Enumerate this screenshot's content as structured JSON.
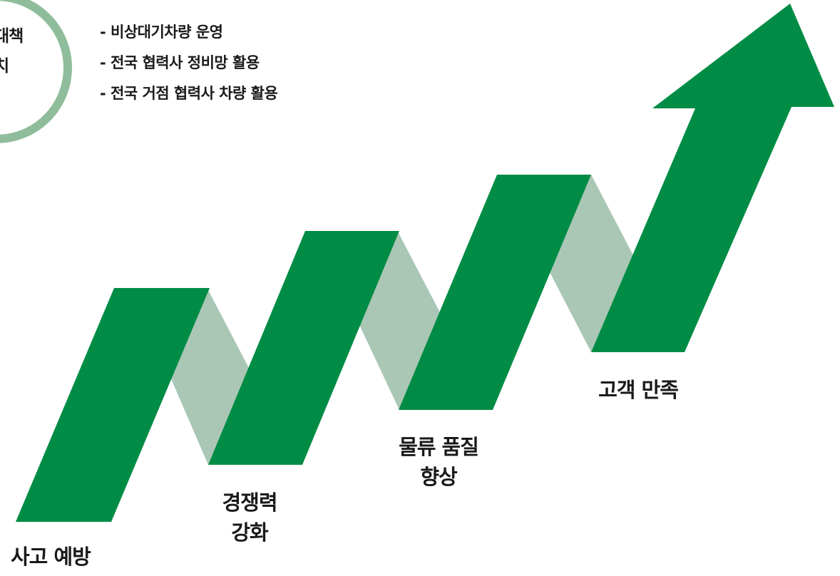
{
  "circle": {
    "line1": "대책",
    "line2": "치",
    "ring_color": "#8fbd9c"
  },
  "bullets": [
    "- 비상대기차량 운영",
    "- 전국 협력사 정비망 활용",
    "- 전국 거점 협력사 차량 활용"
  ],
  "steps": [
    {
      "line1": "사고 예방",
      "line2": ""
    },
    {
      "line1": "경쟁력",
      "line2": "강화"
    },
    {
      "line1": "물류 품질",
      "line2": "향상"
    },
    {
      "line1": "고객 만족",
      "line2": ""
    }
  ],
  "colors": {
    "arrow_dark": "#008c45",
    "arrow_light": "#aac7b6",
    "text": "#1a1a1a"
  }
}
